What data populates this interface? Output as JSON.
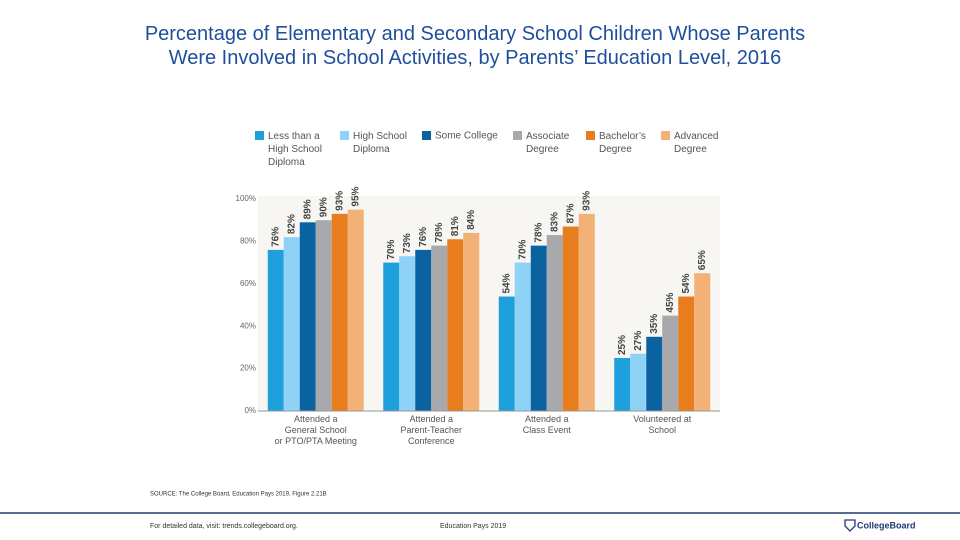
{
  "chart_data": {
    "type": "bar",
    "title": "Percentage of Elementary and Secondary School Children Whose Parents\nWere Involved in School Activities, by Parents’ Education Level, 2016",
    "categories": [
      "Attended a\nGeneral School\nor PTO/PTA Meeting",
      "Attended a\nParent-Teacher\nConference",
      "Attended a\nClass Event",
      "Volunteered at\nSchool"
    ],
    "series": [
      {
        "name": "Less than a\nHigh School\nDiploma",
        "color": "#1ea0dc",
        "values": [
          76,
          70,
          54,
          25
        ],
        "value_labels": [
          "76%",
          "70%",
          "54%",
          "25%"
        ]
      },
      {
        "name": "High School\nDiploma",
        "color": "#8ed3f5",
        "values": [
          82,
          73,
          70,
          27
        ],
        "value_labels": [
          "82%",
          "73%",
          "70%",
          "27%"
        ]
      },
      {
        "name": "Some College",
        "color": "#0b62a0",
        "values": [
          89,
          76,
          78,
          35
        ],
        "value_labels": [
          "89%",
          "76%",
          "78%",
          "35%"
        ]
      },
      {
        "name": "Associate\nDegree",
        "color": "#a7a9ac",
        "values": [
          90,
          78,
          83,
          45
        ],
        "value_labels": [
          "90%",
          "78%",
          "83%",
          "45%"
        ]
      },
      {
        "name": "Bachelor’s\nDegree",
        "color": "#e87d1e",
        "values": [
          93,
          81,
          87,
          54
        ],
        "value_labels": [
          "93%",
          "81%",
          "87%",
          "54%"
        ]
      },
      {
        "name": "Advanced\nDegree",
        "color": "#f2b277",
        "values": [
          95,
          84,
          93,
          65
        ],
        "value_labels": [
          "95%",
          "84%",
          "93%",
          "65%"
        ]
      }
    ],
    "ylim": [
      0,
      100
    ],
    "yticks": [
      {
        "value": 0,
        "label": "0%"
      },
      {
        "value": 20,
        "label": "20%"
      },
      {
        "value": 40,
        "label": "40%"
      },
      {
        "value": 60,
        "label": "60%"
      },
      {
        "value": 80,
        "label": "80%"
      },
      {
        "value": 100,
        "label": "100%"
      }
    ],
    "grid": false
  },
  "footer": {
    "source": "SOURCE: The College Board, Education Pays 2019, Figure 2.21B",
    "link": "For detailed data, visit: trends.collegeboard.org.",
    "publication": "Education Pays 2019",
    "logo": "CollegeBoard"
  }
}
